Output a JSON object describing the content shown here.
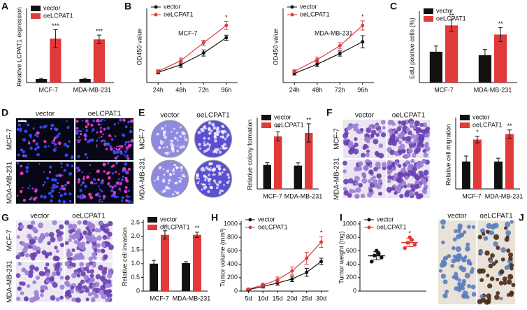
{
  "chart_data": [
    {
      "type": "bar",
      "panel": "A",
      "ylabel": "Relative LCPAT1 expression",
      "categories": [
        "MCF-7",
        "MDA-MB-231"
      ],
      "ylim": [
        0,
        20
      ],
      "series": [
        {
          "name": "vector",
          "color": "#111111",
          "values": [
            1.0,
            1.0
          ],
          "errors": [
            0.2,
            0.2
          ],
          "significance": [
            null,
            null
          ]
        },
        {
          "name": "oeLCPAT1",
          "color": "#e03a3a",
          "values": [
            12.3,
            12.1
          ],
          "errors": [
            2.5,
            1.2
          ],
          "significance": [
            "***",
            "***"
          ]
        }
      ]
    },
    {
      "type": "line",
      "panel": "B",
      "annotation": "MCF-7",
      "ylabel": "OD450 value",
      "categories": [
        "24h",
        "48h",
        "72h",
        "96h"
      ],
      "ylim": [
        0,
        1.4
      ],
      "series": [
        {
          "name": "vector",
          "color": "#111111",
          "values": [
            0.2,
            0.35,
            0.58,
            0.88
          ],
          "errors": [
            0.03,
            0.05,
            0.06,
            0.05
          ],
          "significance": [
            null,
            null,
            null,
            null
          ]
        },
        {
          "name": "oeLCPAT1",
          "color": "#e03a3a",
          "values": [
            0.22,
            0.43,
            0.78,
            1.12
          ],
          "errors": [
            0.03,
            0.05,
            0.05,
            0.08
          ],
          "significance": [
            null,
            null,
            null,
            "*"
          ]
        }
      ]
    },
    {
      "type": "line",
      "annotation": "MDA-MB-231",
      "ylabel": "OD450 value",
      "categories": [
        "24h",
        "48h",
        "72h",
        "96h"
      ],
      "ylim": [
        0,
        1.4
      ],
      "series": [
        {
          "name": "vector",
          "color": "#111111",
          "values": [
            0.18,
            0.36,
            0.57,
            0.8
          ],
          "errors": [
            0.03,
            0.05,
            0.05,
            0.12
          ],
          "significance": [
            null,
            null,
            null,
            null
          ]
        },
        {
          "name": "oeLCPAT1",
          "color": "#e03a3a",
          "values": [
            0.22,
            0.45,
            0.72,
            1.12
          ],
          "errors": [
            0.03,
            0.05,
            0.06,
            0.09
          ],
          "significance": [
            null,
            null,
            null,
            "*"
          ]
        }
      ]
    },
    {
      "type": "bar",
      "panel": "C",
      "ylabel": "EdU positive cells (%)",
      "categories": [
        "MCF-7",
        "MDA-MB-231"
      ],
      "ylim": [
        0,
        60
      ],
      "series": [
        {
          "name": "vector",
          "color": "#111111",
          "values": [
            27,
            24
          ],
          "errors": [
            5,
            5
          ],
          "significance": [
            null,
            null
          ]
        },
        {
          "name": "oeLCPAT1",
          "color": "#e03a3a",
          "values": [
            50,
            42
          ],
          "errors": [
            5,
            6
          ],
          "significance": [
            "**",
            "**"
          ]
        }
      ]
    },
    {
      "type": "bar",
      "ylabel": "Relative colony formation",
      "categories": [
        "MCF-7",
        "MDA-MB-231"
      ],
      "ylim": [
        0,
        3
      ],
      "series": [
        {
          "name": "vector",
          "color": "#111111",
          "values": [
            1.05,
            1.02
          ],
          "errors": [
            0.1,
            0.12
          ],
          "significance": [
            null,
            null
          ]
        },
        {
          "name": "oeLCPAT1",
          "color": "#e03a3a",
          "values": [
            2.3,
            2.45
          ],
          "errors": [
            0.2,
            0.4
          ],
          "significance": [
            "**",
            "**"
          ]
        }
      ]
    },
    {
      "type": "bar",
      "ylabel": "Relative cell migration",
      "categories": [
        "MCF-7",
        "MDA-MB-231"
      ],
      "ylim": [
        0,
        2.5
      ],
      "series": [
        {
          "name": "vector",
          "color": "#111111",
          "values": [
            1.0,
            1.0
          ],
          "errors": [
            0.2,
            0.12
          ],
          "significance": [
            null,
            null
          ]
        },
        {
          "name": "oeLCPAT1",
          "color": "#e03a3a",
          "values": [
            1.8,
            2.0
          ],
          "errors": [
            0.12,
            0.15
          ],
          "significance": [
            "*",
            "**"
          ]
        }
      ]
    },
    {
      "type": "bar",
      "ylabel": "Relative cell invasion",
      "categories": [
        "MCF-7",
        "MDA-MB-231"
      ],
      "ylim": [
        0,
        2.5
      ],
      "yticks": [
        0,
        0.5,
        {
          "value": 1,
          "label": "1.0"
        },
        1.5,
        {
          "value": 2,
          "label": "2.0"
        },
        2.5
      ],
      "series": [
        {
          "name": "vector",
          "color": "#111111",
          "values": [
            1.0,
            1.02
          ],
          "errors": [
            0.12,
            0.05
          ],
          "significance": [
            null,
            null
          ]
        },
        {
          "name": "oeLCPAT1",
          "color": "#e03a3a",
          "values": [
            2.05,
            2.05
          ],
          "errors": [
            0.15,
            0.1
          ],
          "significance": [
            "**",
            "**"
          ]
        }
      ]
    },
    {
      "type": "line",
      "panel": "H",
      "ylabel": "Tumor volume (mm³)",
      "categories": [
        "5d",
        "10d",
        "15d",
        "20d",
        "25d",
        "30d"
      ],
      "ylim": [
        0,
        1000
      ],
      "yticks": [
        0,
        200,
        400,
        600,
        800,
        1000
      ],
      "series": [
        {
          "name": "vector",
          "color": "#111111",
          "values": [
            20,
            70,
            120,
            180,
            280,
            440
          ],
          "errors": [
            10,
            25,
            30,
            40,
            60,
            50
          ],
          "significance": [
            null,
            null,
            null,
            null,
            null,
            null
          ]
        },
        {
          "name": "oeLCPAT1",
          "color": "#e03a3a",
          "values": [
            30,
            90,
            170,
            300,
            490,
            730
          ],
          "errors": [
            10,
            30,
            40,
            60,
            90,
            80
          ],
          "significance": [
            null,
            null,
            null,
            null,
            null,
            "*"
          ]
        }
      ]
    },
    {
      "type": "dot",
      "panel": "I",
      "ylabel": "Tumor weight (mg)",
      "ylim": [
        0,
        1000
      ],
      "yticks": [
        0,
        200,
        400,
        600,
        800,
        1000
      ],
      "series": [
        {
          "name": "vector",
          "color": "#111111",
          "values": [
            440,
            500,
            530,
            560,
            600
          ],
          "mean": 526,
          "sd": 60,
          "significance": null
        },
        {
          "name": "oeLCPAT1",
          "color": "#e03a3a",
          "values": [
            640,
            690,
            720,
            760,
            800
          ],
          "mean": 722,
          "sd": 60,
          "significance": "*"
        }
      ]
    }
  ],
  "image_panels": [
    {
      "panel": "D",
      "columns": [
        "vector",
        "oeLCPAT1"
      ],
      "rows": [
        "MCF-7",
        "MDA-MB-231"
      ]
    },
    {
      "panel": "E",
      "columns": [
        "vector",
        "oeLCPAT1"
      ],
      "rows": [
        "MCF-7",
        "MDA-MB-231"
      ]
    },
    {
      "panel": "F",
      "columns": [
        "vector",
        "oeLCPAT1"
      ],
      "rows": [
        "MCF-7",
        "MDA-MB-231"
      ]
    },
    {
      "panel": "G",
      "columns": [
        "vector",
        "oeLCPAT1"
      ],
      "rows": [
        "MCF-7",
        "MDA-MB-231"
      ]
    },
    {
      "panel": "J",
      "columns": [
        "vector",
        "oeLCPAT1"
      ]
    }
  ]
}
